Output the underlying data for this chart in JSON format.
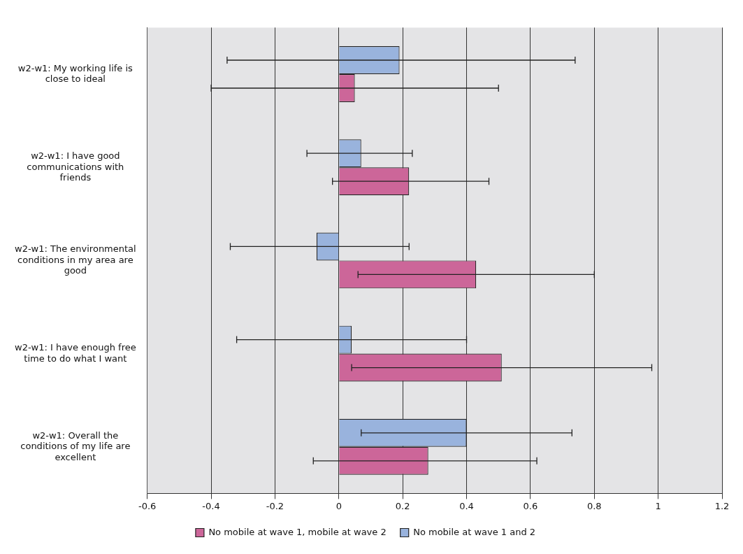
{
  "chart_data": {
    "type": "bar",
    "orientation": "horizontal",
    "categories": [
      "w2-w1: My working life is close to ideal",
      "w2-w1: I have good communications with friends",
      "w2-w1: The environmental conditions in my area are good",
      "w2-w1: I have enough free time to do what I want",
      "w2-w1: Overall the conditions of my life are excellent"
    ],
    "series": [
      {
        "name": "No mobile at wave 1 and 2",
        "color": "#99b3dd",
        "values": [
          0.19,
          0.07,
          -0.07,
          0.04,
          0.4
        ],
        "errors": [
          [
            -0.35,
            0.74
          ],
          [
            -0.1,
            0.23
          ],
          [
            -0.34,
            0.22
          ],
          [
            -0.32,
            0.4
          ],
          [
            0.07,
            0.73
          ]
        ]
      },
      {
        "name": "No mobile at wave 1, mobile at wave 2",
        "color": "#cc6699",
        "values": [
          0.05,
          0.22,
          0.43,
          0.51,
          0.28
        ],
        "errors": [
          [
            -0.4,
            0.5
          ],
          [
            -0.02,
            0.47
          ],
          [
            0.06,
            0.8
          ],
          [
            0.04,
            0.98
          ],
          [
            -0.08,
            0.62
          ]
        ]
      }
    ],
    "xlim": [
      -0.6,
      1.2
    ],
    "xticks": [
      -0.6,
      -0.4,
      -0.2,
      0,
      0.2,
      0.4,
      0.6,
      0.8,
      1,
      1.2
    ],
    "grid": "x",
    "legend": "bottom"
  }
}
